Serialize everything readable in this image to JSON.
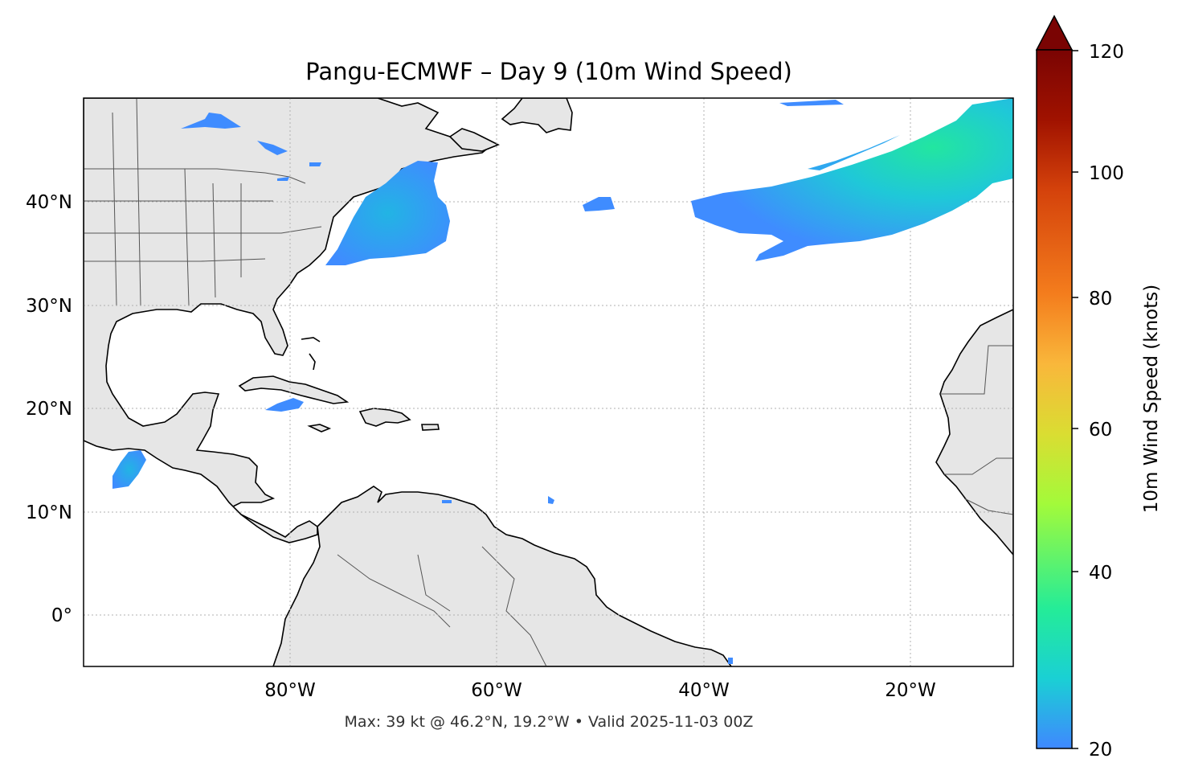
{
  "map": {
    "title": "Pangu-ECMWF – Day 9 (10m Wind Speed)",
    "footer": "Max: 39 kt @ 46.2°N, 19.2°W • Valid 2025-11-03 00Z",
    "extent": {
      "lon": [
        -100,
        -10
      ],
      "lat": [
        -5,
        50
      ]
    },
    "gridlines": true,
    "land_color": "#e6e6e6",
    "ocean_color": "#ffffff",
    "lat_ticks": [
      "40°N",
      "30°N",
      "20°N",
      "10°N",
      "0°"
    ],
    "lon_ticks": [
      "80°W",
      "60°W",
      "40°W",
      "20°W"
    ]
  },
  "colorbar": {
    "label": "10m Wind Speed (knots)",
    "ticks": [
      "120",
      "100",
      "80",
      "60",
      "40",
      "20"
    ],
    "min": 20,
    "max": 120,
    "extend": "max",
    "colors": [
      "#3f88ff",
      "#1ad0d4",
      "#24ec98",
      "#a3fa3a",
      "#dadd32",
      "#f9b73b",
      "#f47d1d",
      "#d4420b",
      "#a01200",
      "#7a0403"
    ]
  }
}
